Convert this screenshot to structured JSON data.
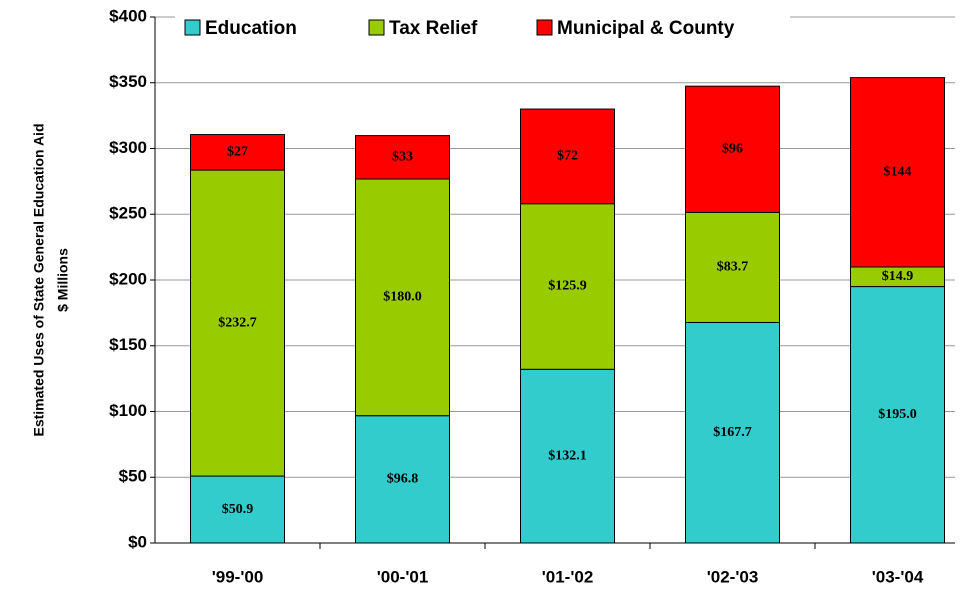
{
  "chart_data": {
    "type": "stacked_bar",
    "ylabel": [
      "Estimated Uses of State General Education Aid",
      "$ Millions"
    ],
    "categories": [
      "'99-'00",
      "'00-'01",
      "'01-'02",
      "'02-'03",
      "'03-'04"
    ],
    "series": [
      {
        "name": "Education",
        "color": "#33cccc",
        "values": [
          50.9,
          96.8,
          132.1,
          167.7,
          195.0
        ],
        "value_labels": [
          "$50.9",
          "$96.8",
          "$132.1",
          "$167.7",
          "$195.0"
        ]
      },
      {
        "name": "Tax Relief",
        "color": "#99cc00",
        "values": [
          232.7,
          180.0,
          125.9,
          83.7,
          14.9
        ],
        "value_labels": [
          "$232.7",
          "$180.0",
          "$125.9",
          "$83.7",
          "$14.9"
        ]
      },
      {
        "name": "Municipal & County",
        "color": "#ff0000",
        "values": [
          27,
          33,
          72,
          96,
          144
        ],
        "value_labels": [
          "$27",
          "$33",
          "$72",
          "$96",
          "$144"
        ]
      }
    ],
    "ylim": [
      0,
      400
    ],
    "yticks": [
      {
        "value": 0,
        "label": "$0"
      },
      {
        "value": 50,
        "label": "$50"
      },
      {
        "value": 100,
        "label": "$100"
      },
      {
        "value": 150,
        "label": "$150"
      },
      {
        "value": 200,
        "label": "$200"
      },
      {
        "value": 250,
        "label": "$250"
      },
      {
        "value": 300,
        "label": "$300"
      },
      {
        "value": 350,
        "label": "$350"
      },
      {
        "value": 400,
        "label": "$400"
      }
    ],
    "grid": true
  }
}
